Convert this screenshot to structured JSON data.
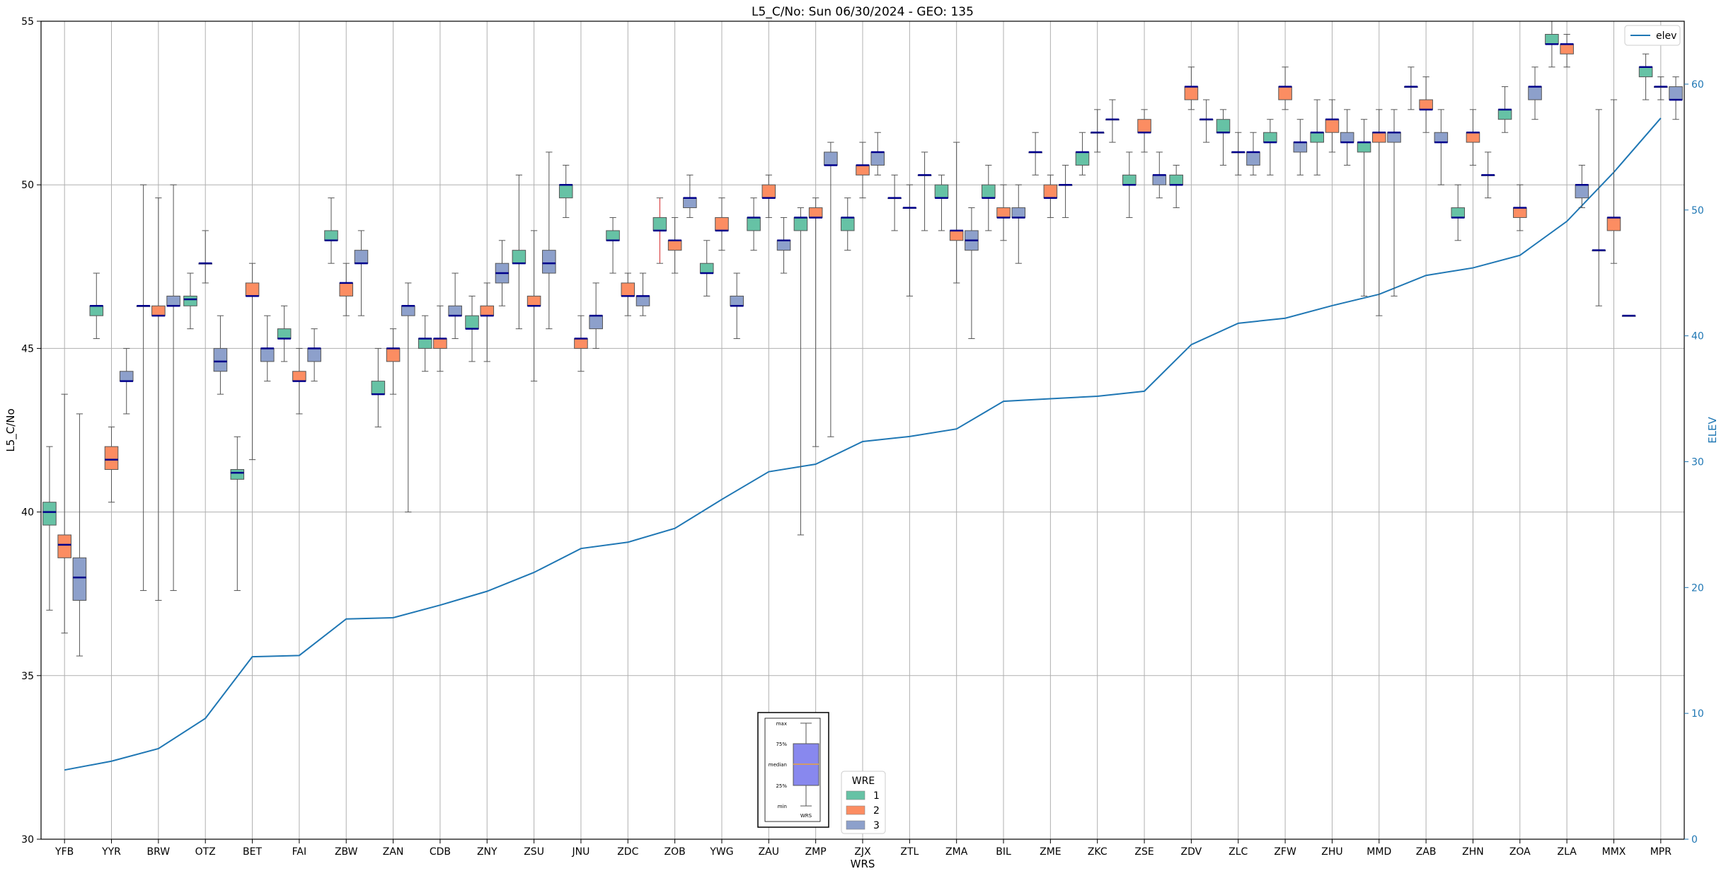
{
  "chart_data": {
    "type": "box",
    "title": "L5_C/No: Sun 06/30/2024 - GEO: 135",
    "xlabel": "WRS",
    "ylabel": "L5_C/No",
    "y2label": "ELEV",
    "ylim": [
      30,
      55
    ],
    "y2lim": [
      0,
      65
    ],
    "yticks": [
      "30",
      "35",
      "40",
      "45",
      "50",
      "55"
    ],
    "y2ticks": [
      "0",
      "10",
      "20",
      "30",
      "40",
      "50",
      "60"
    ],
    "grid": true,
    "categories": [
      "YFB",
      "YYR",
      "BRW",
      "OTZ",
      "BET",
      "FAI",
      "ZBW",
      "ZAN",
      "CDB",
      "ZNY",
      "ZSU",
      "JNU",
      "ZDC",
      "ZOB",
      "YWG",
      "ZAU",
      "ZMP",
      "ZJX",
      "ZTL",
      "ZMA",
      "BIL",
      "ZME",
      "ZKC",
      "ZSE",
      "ZDV",
      "ZLC",
      "ZFW",
      "ZHU",
      "MMD",
      "ZAB",
      "ZHN",
      "ZOA",
      "ZLA",
      "MMX",
      "MPR"
    ],
    "wre_colors": {
      "1": "#66c2a5",
      "2": "#fc8d62",
      "3": "#8da0cb"
    },
    "legend": {
      "title": "WRE",
      "entries": [
        "1",
        "2",
        "3"
      ],
      "placement": "bottom-center"
    },
    "line_legend": {
      "label": "elev",
      "color": "#1f77b4",
      "placement": "top-right"
    },
    "key_box": {
      "labels": [
        "max",
        "75%",
        "median",
        "25%",
        "min"
      ],
      "xlabel": "WRS"
    },
    "elev_series": {
      "name": "elev",
      "values": [
        5.5,
        6.2,
        7.2,
        9.6,
        14.5,
        14.6,
        17.5,
        17.6,
        18.6,
        19.7,
        21.2,
        23.1,
        23.6,
        24.7,
        27.0,
        29.2,
        29.8,
        31.6,
        32.0,
        32.6,
        34.8,
        35.0,
        35.2,
        35.6,
        39.3,
        41.0,
        41.4,
        42.4,
        43.3,
        44.8,
        45.4,
        46.4,
        49.1,
        53.0,
        57.3
      ]
    },
    "boxes": [
      {
        "site": "YFB",
        "wre": 1,
        "min": 37.0,
        "q1": 39.6,
        "median": 40.0,
        "q3": 40.3,
        "max": 42.0
      },
      {
        "site": "YFB",
        "wre": 2,
        "min": 36.3,
        "q1": 38.6,
        "median": 39.0,
        "q3": 39.3,
        "max": 43.6
      },
      {
        "site": "YFB",
        "wre": 3,
        "min": 35.6,
        "q1": 37.3,
        "median": 38.0,
        "q3": 38.6,
        "max": 43.0
      },
      {
        "site": "YYR",
        "wre": 1,
        "min": 45.3,
        "q1": 46.0,
        "median": 46.3,
        "q3": 46.3,
        "max": 47.3
      },
      {
        "site": "YYR",
        "wre": 2,
        "min": 40.3,
        "q1": 41.3,
        "median": 41.6,
        "q3": 42.0,
        "max": 42.6
      },
      {
        "site": "YYR",
        "wre": 3,
        "min": 43.0,
        "q1": 44.0,
        "median": 44.0,
        "q3": 44.3,
        "max": 45.0
      },
      {
        "site": "BRW",
        "wre": 1,
        "min": 37.6,
        "q1": 46.3,
        "median": 46.3,
        "q3": 46.3,
        "max": 50.0
      },
      {
        "site": "BRW",
        "wre": 2,
        "min": 37.3,
        "q1": 46.0,
        "median": 46.0,
        "q3": 46.3,
        "max": 49.6
      },
      {
        "site": "BRW",
        "wre": 3,
        "min": 37.6,
        "q1": 46.3,
        "median": 46.3,
        "q3": 46.6,
        "max": 50.0
      },
      {
        "site": "OTZ",
        "wre": 1,
        "min": 45.6,
        "q1": 46.3,
        "median": 46.5,
        "q3": 46.6,
        "max": 47.3
      },
      {
        "site": "OTZ",
        "wre": 2,
        "min": 47.0,
        "q1": 47.6,
        "median": 47.6,
        "q3": 47.6,
        "max": 48.6
      },
      {
        "site": "OTZ",
        "wre": 3,
        "min": 43.6,
        "q1": 44.3,
        "median": 44.6,
        "q3": 45.0,
        "max": 46.0
      },
      {
        "site": "BET",
        "wre": 1,
        "min": 37.6,
        "q1": 41.0,
        "median": 41.2,
        "q3": 41.3,
        "max": 42.3
      },
      {
        "site": "BET",
        "wre": 2,
        "min": 41.6,
        "q1": 46.6,
        "median": 46.6,
        "q3": 47.0,
        "max": 47.6
      },
      {
        "site": "BET",
        "wre": 3,
        "min": 44.0,
        "q1": 44.6,
        "median": 45.0,
        "q3": 45.0,
        "max": 46.0
      },
      {
        "site": "FAI",
        "wre": 1,
        "min": 44.6,
        "q1": 45.3,
        "median": 45.3,
        "q3": 45.6,
        "max": 46.3
      },
      {
        "site": "FAI",
        "wre": 2,
        "min": 43.0,
        "q1": 44.0,
        "median": 44.0,
        "q3": 44.3,
        "max": 45.0
      },
      {
        "site": "FAI",
        "wre": 3,
        "min": 44.0,
        "q1": 44.6,
        "median": 45.0,
        "q3": 45.0,
        "max": 45.6
      },
      {
        "site": "ZBW",
        "wre": 1,
        "min": 47.6,
        "q1": 48.3,
        "median": 48.3,
        "q3": 48.6,
        "max": 49.6
      },
      {
        "site": "ZBW",
        "wre": 2,
        "min": 46.0,
        "q1": 46.6,
        "median": 47.0,
        "q3": 47.0,
        "max": 47.6
      },
      {
        "site": "ZBW",
        "wre": 3,
        "min": 46.0,
        "q1": 47.6,
        "median": 47.6,
        "q3": 48.0,
        "max": 48.6
      },
      {
        "site": "ZAN",
        "wre": 1,
        "min": 42.6,
        "q1": 43.6,
        "median": 43.6,
        "q3": 44.0,
        "max": 45.0
      },
      {
        "site": "ZAN",
        "wre": 2,
        "min": 43.6,
        "q1": 44.6,
        "median": 45.0,
        "q3": 45.0,
        "max": 45.6
      },
      {
        "site": "ZAN",
        "wre": 3,
        "min": 40.0,
        "q1": 46.0,
        "median": 46.3,
        "q3": 46.3,
        "max": 47.0
      },
      {
        "site": "CDB",
        "wre": 1,
        "min": 44.3,
        "q1": 45.0,
        "median": 45.3,
        "q3": 45.3,
        "max": 46.0
      },
      {
        "site": "CDB",
        "wre": 2,
        "min": 44.3,
        "q1": 45.0,
        "median": 45.3,
        "q3": 45.3,
        "max": 46.3
      },
      {
        "site": "CDB",
        "wre": 3,
        "min": 45.3,
        "q1": 46.0,
        "median": 46.0,
        "q3": 46.3,
        "max": 47.3
      },
      {
        "site": "ZNY",
        "wre": 1,
        "min": 44.6,
        "q1": 45.6,
        "median": 45.6,
        "q3": 46.0,
        "max": 46.6
      },
      {
        "site": "ZNY",
        "wre": 2,
        "min": 44.6,
        "q1": 46.0,
        "median": 46.0,
        "q3": 46.3,
        "max": 47.0
      },
      {
        "site": "ZNY",
        "wre": 3,
        "min": 46.3,
        "q1": 47.0,
        "median": 47.3,
        "q3": 47.6,
        "max": 48.3
      },
      {
        "site": "ZSU",
        "wre": 1,
        "min": 45.6,
        "q1": 47.6,
        "median": 47.6,
        "q3": 48.0,
        "max": 50.3
      },
      {
        "site": "ZSU",
        "wre": 2,
        "min": 44.0,
        "q1": 46.3,
        "median": 46.3,
        "q3": 46.6,
        "max": 48.6
      },
      {
        "site": "ZSU",
        "wre": 3,
        "min": 45.6,
        "q1": 47.3,
        "median": 47.6,
        "q3": 48.0,
        "max": 51.0
      },
      {
        "site": "JNU",
        "wre": 1,
        "min": 49.0,
        "q1": 49.6,
        "median": 50.0,
        "q3": 50.0,
        "max": 50.6
      },
      {
        "site": "JNU",
        "wre": 2,
        "min": 44.3,
        "q1": 45.0,
        "median": 45.3,
        "q3": 45.3,
        "max": 46.0
      },
      {
        "site": "JNU",
        "wre": 3,
        "min": 45.0,
        "q1": 45.6,
        "median": 46.0,
        "q3": 46.0,
        "max": 47.0
      },
      {
        "site": "ZDC",
        "wre": 1,
        "min": 47.3,
        "q1": 48.3,
        "median": 48.3,
        "q3": 48.6,
        "max": 49.0
      },
      {
        "site": "ZDC",
        "wre": 2,
        "min": 46.0,
        "q1": 46.6,
        "median": 46.6,
        "q3": 47.0,
        "max": 47.3
      },
      {
        "site": "ZDC",
        "wre": 3,
        "min": 46.0,
        "q1": 46.3,
        "median": 46.6,
        "q3": 46.6,
        "max": 47.3
      },
      {
        "site": "ZOB",
        "wre": 1,
        "min": 47.6,
        "q1": 48.6,
        "median": 48.6,
        "q3": 49.0,
        "max": 49.6,
        "outlier_color": "#d62728"
      },
      {
        "site": "ZOB",
        "wre": 2,
        "min": 47.3,
        "q1": 48.0,
        "median": 48.3,
        "q3": 48.3,
        "max": 49.0
      },
      {
        "site": "ZOB",
        "wre": 3,
        "min": 49.0,
        "q1": 49.3,
        "median": 49.6,
        "q3": 49.6,
        "max": 50.3
      },
      {
        "site": "YWG",
        "wre": 1,
        "min": 46.6,
        "q1": 47.3,
        "median": 47.3,
        "q3": 47.6,
        "max": 48.3
      },
      {
        "site": "YWG",
        "wre": 2,
        "min": 48.0,
        "q1": 48.6,
        "median": 48.6,
        "q3": 49.0,
        "max": 49.6
      },
      {
        "site": "YWG",
        "wre": 3,
        "min": 45.3,
        "q1": 46.3,
        "median": 46.3,
        "q3": 46.6,
        "max": 47.3
      },
      {
        "site": "ZAU",
        "wre": 1,
        "min": 48.0,
        "q1": 48.6,
        "median": 49.0,
        "q3": 49.0,
        "max": 49.6
      },
      {
        "site": "ZAU",
        "wre": 2,
        "min": 49.0,
        "q1": 49.6,
        "median": 49.6,
        "q3": 50.0,
        "max": 50.3
      },
      {
        "site": "ZAU",
        "wre": 3,
        "min": 47.3,
        "q1": 48.0,
        "median": 48.3,
        "q3": 48.3,
        "max": 49.0
      },
      {
        "site": "ZMP",
        "wre": 1,
        "min": 39.3,
        "q1": 48.6,
        "median": 49.0,
        "q3": 49.0,
        "max": 49.3
      },
      {
        "site": "ZMP",
        "wre": 2,
        "min": 42.0,
        "q1": 49.0,
        "median": 49.0,
        "q3": 49.3,
        "max": 49.6
      },
      {
        "site": "ZMP",
        "wre": 3,
        "min": 42.3,
        "q1": 50.6,
        "median": 50.6,
        "q3": 51.0,
        "max": 51.3
      },
      {
        "site": "ZJX",
        "wre": 1,
        "min": 48.0,
        "q1": 48.6,
        "median": 49.0,
        "q3": 49.0,
        "max": 49.6
      },
      {
        "site": "ZJX",
        "wre": 2,
        "min": 49.6,
        "q1": 50.3,
        "median": 50.6,
        "q3": 50.6,
        "max": 51.3
      },
      {
        "site": "ZJX",
        "wre": 3,
        "min": 50.3,
        "q1": 50.6,
        "median": 51.0,
        "q3": 51.0,
        "max": 51.6
      },
      {
        "site": "ZTL",
        "wre": 1,
        "min": 48.6,
        "q1": 49.6,
        "median": 49.6,
        "q3": 49.6,
        "max": 50.3
      },
      {
        "site": "ZTL",
        "wre": 2,
        "min": 46.6,
        "q1": 49.3,
        "median": 49.3,
        "q3": 49.3,
        "max": 50.0
      },
      {
        "site": "ZTL",
        "wre": 3,
        "min": 48.6,
        "q1": 50.3,
        "median": 50.3,
        "q3": 50.3,
        "max": 51.0
      },
      {
        "site": "ZMA",
        "wre": 1,
        "min": 48.6,
        "q1": 49.6,
        "median": 49.6,
        "q3": 50.0,
        "max": 50.3
      },
      {
        "site": "ZMA",
        "wre": 2,
        "min": 47.0,
        "q1": 48.3,
        "median": 48.6,
        "q3": 48.6,
        "max": 51.3
      },
      {
        "site": "ZMA",
        "wre": 3,
        "min": 45.3,
        "q1": 48.0,
        "median": 48.3,
        "q3": 48.6,
        "max": 49.3
      },
      {
        "site": "BIL",
        "wre": 1,
        "min": 48.6,
        "q1": 49.6,
        "median": 49.6,
        "q3": 50.0,
        "max": 50.6
      },
      {
        "site": "BIL",
        "wre": 2,
        "min": 48.3,
        "q1": 49.0,
        "median": 49.0,
        "q3": 49.3,
        "max": 50.0
      },
      {
        "site": "BIL",
        "wre": 3,
        "min": 47.6,
        "q1": 49.0,
        "median": 49.0,
        "q3": 49.3,
        "max": 50.0
      },
      {
        "site": "ZME",
        "wre": 1,
        "min": 50.3,
        "q1": 51.0,
        "median": 51.0,
        "q3": 51.0,
        "max": 51.6
      },
      {
        "site": "ZME",
        "wre": 2,
        "min": 49.0,
        "q1": 49.6,
        "median": 49.6,
        "q3": 50.0,
        "max": 50.3
      },
      {
        "site": "ZME",
        "wre": 3,
        "min": 49.0,
        "q1": 50.0,
        "median": 50.0,
        "q3": 50.0,
        "max": 50.6
      },
      {
        "site": "ZKC",
        "wre": 1,
        "min": 50.3,
        "q1": 50.6,
        "median": 51.0,
        "q3": 51.0,
        "max": 51.6
      },
      {
        "site": "ZKC",
        "wre": 2,
        "min": 51.0,
        "q1": 51.6,
        "median": 51.6,
        "q3": 51.6,
        "max": 52.3
      },
      {
        "site": "ZKC",
        "wre": 3,
        "min": 51.3,
        "q1": 52.0,
        "median": 52.0,
        "q3": 52.0,
        "max": 52.6
      },
      {
        "site": "ZSE",
        "wre": 1,
        "min": 49.0,
        "q1": 50.0,
        "median": 50.0,
        "q3": 50.3,
        "max": 51.0
      },
      {
        "site": "ZSE",
        "wre": 2,
        "min": 51.0,
        "q1": 51.6,
        "median": 51.6,
        "q3": 52.0,
        "max": 52.3
      },
      {
        "site": "ZSE",
        "wre": 3,
        "min": 49.6,
        "q1": 50.0,
        "median": 50.3,
        "q3": 50.3,
        "max": 51.0
      },
      {
        "site": "ZDV",
        "wre": 1,
        "min": 49.3,
        "q1": 50.0,
        "median": 50.0,
        "q3": 50.3,
        "max": 50.6
      },
      {
        "site": "ZDV",
        "wre": 2,
        "min": 52.3,
        "q1": 52.6,
        "median": 53.0,
        "q3": 53.0,
        "max": 53.6
      },
      {
        "site": "ZDV",
        "wre": 3,
        "min": 51.3,
        "q1": 52.0,
        "median": 52.0,
        "q3": 52.0,
        "max": 52.6
      },
      {
        "site": "ZLC",
        "wre": 1,
        "min": 50.6,
        "q1": 51.6,
        "median": 51.6,
        "q3": 52.0,
        "max": 52.3
      },
      {
        "site": "ZLC",
        "wre": 2,
        "min": 50.3,
        "q1": 51.0,
        "median": 51.0,
        "q3": 51.0,
        "max": 51.6
      },
      {
        "site": "ZLC",
        "wre": 3,
        "min": 50.3,
        "q1": 50.6,
        "median": 51.0,
        "q3": 51.0,
        "max": 51.6
      },
      {
        "site": "ZFW",
        "wre": 1,
        "min": 50.3,
        "q1": 51.3,
        "median": 51.3,
        "q3": 51.6,
        "max": 52.0
      },
      {
        "site": "ZFW",
        "wre": 2,
        "min": 52.3,
        "q1": 52.6,
        "median": 53.0,
        "q3": 53.0,
        "max": 53.6
      },
      {
        "site": "ZFW",
        "wre": 3,
        "min": 50.3,
        "q1": 51.0,
        "median": 51.3,
        "q3": 51.3,
        "max": 52.0
      },
      {
        "site": "ZHU",
        "wre": 1,
        "min": 50.3,
        "q1": 51.3,
        "median": 51.6,
        "q3": 51.6,
        "max": 52.6
      },
      {
        "site": "ZHU",
        "wre": 2,
        "min": 51.0,
        "q1": 51.6,
        "median": 52.0,
        "q3": 52.0,
        "max": 52.6
      },
      {
        "site": "ZHU",
        "wre": 3,
        "min": 50.6,
        "q1": 51.3,
        "median": 51.3,
        "q3": 51.6,
        "max": 52.3
      },
      {
        "site": "MMD",
        "wre": 1,
        "min": 46.6,
        "q1": 51.0,
        "median": 51.3,
        "q3": 51.3,
        "max": 52.0
      },
      {
        "site": "MMD",
        "wre": 2,
        "min": 46.0,
        "q1": 51.3,
        "median": 51.6,
        "q3": 51.6,
        "max": 52.3
      },
      {
        "site": "MMD",
        "wre": 3,
        "min": 46.6,
        "q1": 51.3,
        "median": 51.6,
        "q3": 51.6,
        "max": 52.3
      },
      {
        "site": "ZAB",
        "wre": 1,
        "min": 52.3,
        "q1": 53.0,
        "median": 53.0,
        "q3": 53.0,
        "max": 53.6
      },
      {
        "site": "ZAB",
        "wre": 2,
        "min": 51.6,
        "q1": 52.3,
        "median": 52.3,
        "q3": 52.6,
        "max": 53.3
      },
      {
        "site": "ZAB",
        "wre": 3,
        "min": 50.0,
        "q1": 51.3,
        "median": 51.3,
        "q3": 51.6,
        "max": 52.3
      },
      {
        "site": "ZHN",
        "wre": 1,
        "min": 48.3,
        "q1": 49.0,
        "median": 49.0,
        "q3": 49.3,
        "max": 50.0
      },
      {
        "site": "ZHN",
        "wre": 2,
        "min": 50.6,
        "q1": 51.3,
        "median": 51.6,
        "q3": 51.6,
        "max": 52.3
      },
      {
        "site": "ZHN",
        "wre": 3,
        "min": 49.6,
        "q1": 50.3,
        "median": 50.3,
        "q3": 50.3,
        "max": 51.0
      },
      {
        "site": "ZOA",
        "wre": 1,
        "min": 51.6,
        "q1": 52.0,
        "median": 52.3,
        "q3": 52.3,
        "max": 53.0
      },
      {
        "site": "ZOA",
        "wre": 2,
        "min": 48.6,
        "q1": 49.0,
        "median": 49.3,
        "q3": 49.3,
        "max": 50.0
      },
      {
        "site": "ZOA",
        "wre": 3,
        "min": 52.0,
        "q1": 52.6,
        "median": 53.0,
        "q3": 53.0,
        "max": 53.6
      },
      {
        "site": "ZLA",
        "wre": 1,
        "min": 53.6,
        "q1": 54.3,
        "median": 54.3,
        "q3": 54.6,
        "max": 55.0
      },
      {
        "site": "ZLA",
        "wre": 2,
        "min": 53.6,
        "q1": 54.0,
        "median": 54.3,
        "q3": 54.3,
        "max": 54.6
      },
      {
        "site": "ZLA",
        "wre": 3,
        "min": 49.3,
        "q1": 49.6,
        "median": 50.0,
        "q3": 50.0,
        "max": 50.6
      },
      {
        "site": "MMX",
        "wre": 1,
        "min": 46.3,
        "q1": 48.0,
        "median": 48.0,
        "q3": 48.0,
        "max": 52.3
      },
      {
        "site": "MMX",
        "wre": 2,
        "min": 47.6,
        "q1": 48.6,
        "median": 49.0,
        "q3": 49.0,
        "max": 52.6
      },
      {
        "site": "MMX",
        "wre": 3,
        "min": 46.0,
        "q1": 46.0,
        "median": 46.0,
        "q3": 46.0,
        "max": 46.0
      },
      {
        "site": "MPR",
        "wre": 1,
        "min": 52.6,
        "q1": 53.3,
        "median": 53.6,
        "q3": 53.6,
        "max": 54.0
      },
      {
        "site": "MPR",
        "wre": 2,
        "min": 52.6,
        "q1": 53.0,
        "median": 53.0,
        "q3": 53.0,
        "max": 53.3
      },
      {
        "site": "MPR",
        "wre": 3,
        "min": 52.0,
        "q1": 52.6,
        "median": 52.6,
        "q3": 53.0,
        "max": 53.3
      }
    ]
  }
}
